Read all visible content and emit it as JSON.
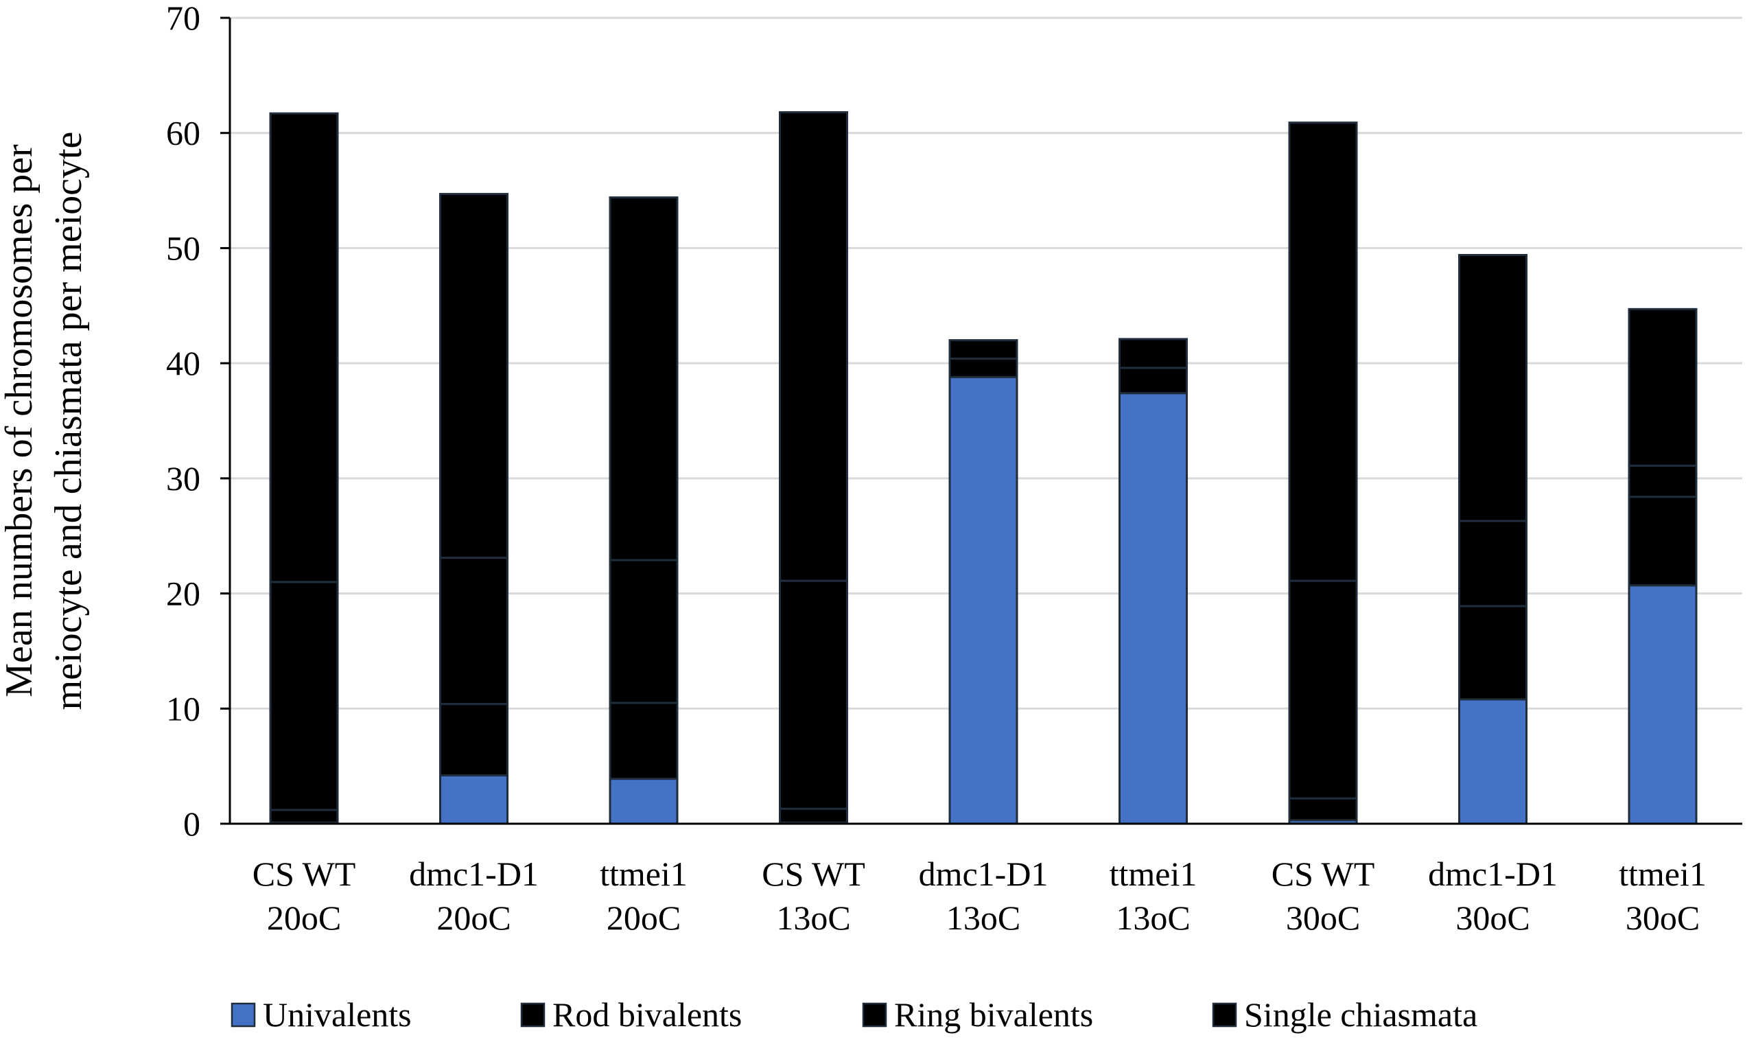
{
  "chart_data": {
    "type": "bar",
    "stacked": true,
    "title": "",
    "xlabel": "",
    "ylabel": "Mean numbers of chromosomes per meiocyte and chiasmata per meiocyte",
    "ylabel_lines": [
      "Mean numbers of chromosomes per",
      "meiocyte and chiasmata per meiocyte"
    ],
    "ylim": [
      0,
      70
    ],
    "yticks": [
      0,
      10,
      20,
      30,
      40,
      50,
      60,
      70
    ],
    "grid": true,
    "legend_position": "bottom",
    "categories": [
      [
        "CS WT",
        "20oC"
      ],
      [
        "dmc1-D1",
        "20oC"
      ],
      [
        "ttmei1",
        "20oC"
      ],
      [
        "CS WT",
        "13oC"
      ],
      [
        "dmc1-D1",
        "13oC"
      ],
      [
        "ttmei1",
        "13oC"
      ],
      [
        "CS WT",
        "30oC"
      ],
      [
        "dmc1-D1",
        "30oC"
      ],
      [
        "ttmei1",
        "30oC"
      ]
    ],
    "series": [
      {
        "name": "Univalents",
        "color": "#4472C4",
        "pattern": "solid",
        "values": [
          0.1,
          4.2,
          3.9,
          0.1,
          38.8,
          37.4,
          0.3,
          10.8,
          20.7
        ]
      },
      {
        "name": "Rod bivalents",
        "color": "#FFC000",
        "pattern": "vertical-stripes",
        "values": [
          1.1,
          6.2,
          6.6,
          1.2,
          1.6,
          2.2,
          1.9,
          8.1,
          7.7
        ]
      },
      {
        "name": "Ring bivalents",
        "color": "#70C040",
        "pattern": "dashes",
        "values": [
          19.8,
          12.7,
          12.4,
          19.8,
          0.0,
          0.0,
          18.9,
          7.4,
          2.7
        ]
      },
      {
        "name": "Single chiasmata",
        "color": "#E8338C",
        "pattern": "checker",
        "values": [
          40.7,
          31.6,
          31.5,
          40.7,
          1.6,
          2.5,
          39.8,
          23.1,
          13.6
        ]
      }
    ]
  }
}
